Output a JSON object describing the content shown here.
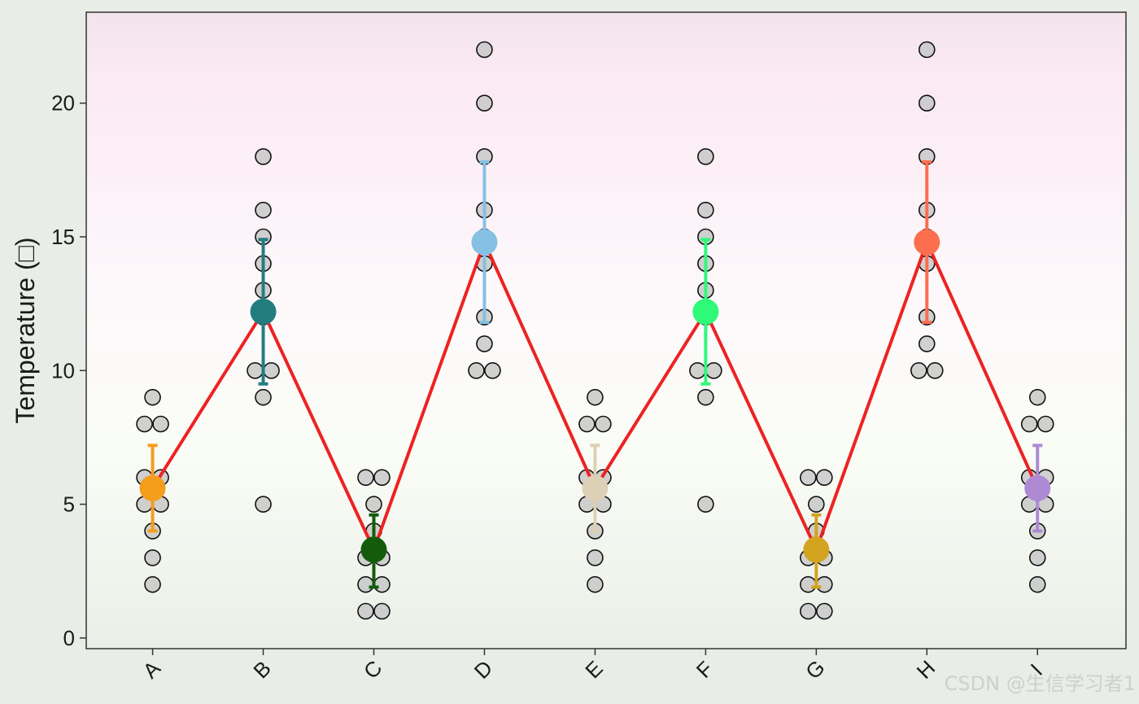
{
  "chart_data": {
    "type": "scatter",
    "title": "",
    "xlabel": "",
    "ylabel": "Temperature (□)",
    "ylim": [
      -0.4,
      23.4
    ],
    "yticks": [
      0,
      5,
      10,
      15,
      20
    ],
    "grid": false,
    "background_gradient": [
      "#f2e4ec",
      "#fbe9f3",
      "#fdf9fb",
      "#fafcf6",
      "#e9efe7"
    ],
    "line_color": "#ee2222",
    "point_fill": "#c8c8c8",
    "categories": [
      "A",
      "B",
      "C",
      "D",
      "E",
      "F",
      "G",
      "H",
      "I"
    ],
    "colors": [
      "#f59d1d",
      "#227d80",
      "#135c0c",
      "#86c0e4",
      "#ded0b4",
      "#2efa78",
      "#d2a41f",
      "#fb6e4e",
      "#ae8ad4"
    ],
    "points": [
      [
        9,
        8,
        8,
        6,
        6,
        5,
        5,
        4,
        3,
        2
      ],
      [
        18,
        16,
        15,
        14,
        13,
        12,
        10,
        10,
        9,
        5
      ],
      [
        6,
        6,
        5,
        4,
        3,
        3,
        2,
        2,
        1,
        1
      ],
      [
        22,
        20,
        18,
        16,
        15,
        14,
        12,
        11,
        10,
        10
      ],
      [
        9,
        8,
        8,
        6,
        6,
        5,
        5,
        4,
        3,
        2
      ],
      [
        18,
        16,
        15,
        14,
        13,
        12,
        10,
        10,
        9,
        5
      ],
      [
        6,
        6,
        5,
        4,
        3,
        3,
        2,
        2,
        1,
        1
      ],
      [
        22,
        20,
        18,
        16,
        15,
        14,
        12,
        11,
        10,
        10
      ],
      [
        9,
        8,
        8,
        6,
        6,
        5,
        5,
        4,
        3,
        2
      ]
    ],
    "means": [
      5.6,
      12.2,
      3.3,
      14.8,
      5.6,
      12.2,
      3.3,
      14.8,
      5.6
    ],
    "error_low": [
      4.0,
      9.5,
      1.9,
      11.8,
      4.0,
      9.5,
      1.9,
      11.8,
      4.0
    ],
    "error_high": [
      7.2,
      14.9,
      4.6,
      17.8,
      7.2,
      14.9,
      4.6,
      17.8,
      7.2
    ]
  },
  "watermark": "CSDN @生信学习者1"
}
